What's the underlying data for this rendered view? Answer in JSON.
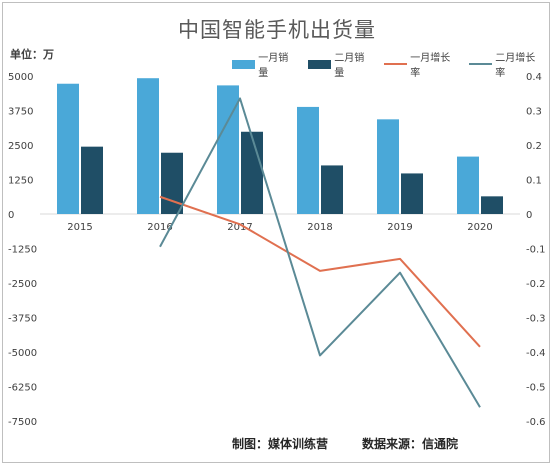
{
  "chart_data": {
    "type": "bar",
    "title": "中国智能手机出货量",
    "unit_label": "单位：万",
    "categories": [
      "2015",
      "2016",
      "2017",
      "2018",
      "2019",
      "2020"
    ],
    "series": [
      {
        "name": "一月销量",
        "kind": "bar",
        "axis": "left",
        "color": "#4aa8d8",
        "values": [
          4720,
          4920,
          4660,
          3880,
          3430,
          2080
        ]
      },
      {
        "name": "二月销量",
        "kind": "bar",
        "axis": "left",
        "color": "#1f4e66",
        "values": [
          2440,
          2220,
          2980,
          1760,
          1470,
          640
        ]
      },
      {
        "name": "一月增长率",
        "kind": "line",
        "axis": "right",
        "color": "#e07050",
        "values": [
          null,
          0.05,
          -0.03,
          -0.165,
          -0.13,
          -0.385
        ]
      },
      {
        "name": "二月增长率",
        "kind": "line",
        "axis": "right",
        "color": "#5b8a96",
        "values": [
          null,
          -0.095,
          0.335,
          -0.41,
          -0.17,
          -0.56
        ]
      }
    ],
    "y_left": {
      "ylim": [
        -7500,
        5000
      ],
      "ticks": [
        "5000",
        "3750",
        "2500",
        "1250",
        "0",
        "-1250",
        "-2500",
        "-3750",
        "-5000",
        "-6250",
        "-7500"
      ]
    },
    "y_right": {
      "ylim": [
        -0.6,
        0.4
      ],
      "ticks": [
        "0.4",
        "0.3",
        "0.2",
        "0.1",
        "0",
        "-0.1",
        "-0.2",
        "-0.3",
        "-0.4",
        "-0.5",
        "-0.6"
      ]
    },
    "grid": true,
    "legend_position": "top-right"
  },
  "footer": {
    "credit": "制图：媒体训练营",
    "source": "数据来源：信通院"
  }
}
